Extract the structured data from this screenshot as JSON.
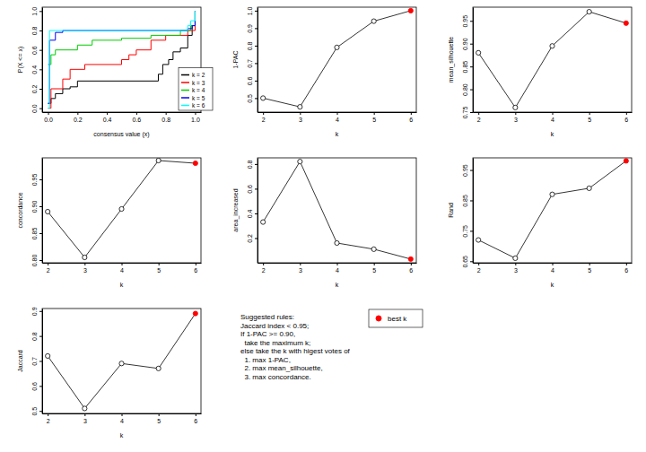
{
  "chart_data": [
    {
      "type": "line",
      "line_style": "step",
      "xlabel": "consensus value (x)",
      "ylabel": "P(X <= x)",
      "xlim": [
        -0.04,
        1.04
      ],
      "ylim": [
        -0.04,
        1.04
      ],
      "xticks": [
        {
          "value": 0,
          "label": "0.0"
        },
        0.2,
        0.4,
        0.6,
        0.8,
        {
          "value": 1,
          "label": "1.0"
        }
      ],
      "yticks": [
        {
          "value": 0,
          "label": "0.0"
        },
        0.2,
        0.4,
        0.6,
        0.8,
        {
          "value": 1,
          "label": "1.0"
        }
      ],
      "legend": "bottomright",
      "series": [
        {
          "name": "k = 2",
          "color": "black",
          "x": [
            0,
            0.02,
            0.05,
            0.1,
            0.15,
            0.2,
            0.75,
            0.78,
            0.82,
            0.85,
            0.9,
            0.95,
            0.98,
            1
          ],
          "values": [
            0.05,
            0.1,
            0.15,
            0.2,
            0.22,
            0.28,
            0.35,
            0.45,
            0.5,
            0.58,
            0.62,
            0.75,
            0.85,
            1
          ]
        },
        {
          "name": "k = 3",
          "color": "red",
          "x": [
            0,
            0.02,
            0.1,
            0.15,
            0.25,
            0.5,
            0.55,
            0.6,
            0.7,
            0.8,
            0.95,
            1
          ],
          "values": [
            0,
            0.2,
            0.3,
            0.4,
            0.45,
            0.5,
            0.55,
            0.6,
            0.7,
            0.75,
            0.8,
            1
          ]
        },
        {
          "name": "k = 4",
          "color": "#00cd00",
          "x": [
            0,
            0.02,
            0.05,
            0.2,
            0.3,
            0.5,
            0.7,
            0.9,
            0.97,
            1
          ],
          "values": [
            0.45,
            0.55,
            0.6,
            0.65,
            0.7,
            0.72,
            0.75,
            0.8,
            0.85,
            1
          ]
        },
        {
          "name": "k = 5",
          "color": "blue",
          "x": [
            0,
            0.01,
            0.05,
            0.1,
            0.95,
            0.98,
            1
          ],
          "values": [
            0.05,
            0.7,
            0.78,
            0.8,
            0.82,
            0.85,
            1
          ]
        },
        {
          "name": "k = 6",
          "color": "cyan",
          "x": [
            0,
            0.01,
            0.95,
            0.97,
            1
          ],
          "values": [
            0,
            0.8,
            0.85,
            0.9,
            1
          ]
        }
      ]
    },
    {
      "type": "line",
      "marker": "circle",
      "line_style": "solid",
      "xlabel": "k",
      "ylabel": "1-PAC",
      "xlim": [
        1.85,
        6.15
      ],
      "ylim": [
        0.42,
        1.02
      ],
      "xticks": [
        2,
        3,
        4,
        5,
        6
      ],
      "yticks": [
        0.5,
        0.6,
        0.7,
        0.8,
        0.9,
        {
          "value": 1,
          "label": "1.0"
        }
      ],
      "x": [
        2,
        3,
        4,
        5,
        6
      ],
      "values": [
        0.5,
        0.45,
        0.79,
        0.94,
        1.0
      ],
      "color": "black",
      "colors": [
        "black",
        "black",
        "black",
        "black",
        "red"
      ]
    },
    {
      "type": "line",
      "marker": "circle",
      "line_style": "solid",
      "xlabel": "k",
      "ylabel": "mean_silhouette",
      "xlim": [
        1.85,
        6.15
      ],
      "ylim": [
        0.75,
        0.98
      ],
      "xticks": [
        2,
        3,
        4,
        5,
        6
      ],
      "yticks": [
        0.75,
        {
          "value": 0.8,
          "label": "0.80"
        },
        0.85,
        {
          "value": 0.9,
          "label": "0.90"
        },
        0.95
      ],
      "x": [
        2,
        3,
        4,
        5,
        6
      ],
      "values": [
        0.88,
        0.76,
        0.895,
        0.97,
        0.945
      ],
      "color": "black",
      "colors": [
        "black",
        "black",
        "black",
        "black",
        "red"
      ]
    },
    {
      "type": "line",
      "marker": "circle",
      "line_style": "solid",
      "xlabel": "k",
      "ylabel": "concordance",
      "xlim": [
        1.85,
        6.15
      ],
      "ylim": [
        0.795,
        0.99
      ],
      "xticks": [
        2,
        3,
        4,
        5,
        6
      ],
      "yticks": [
        {
          "value": 0.8,
          "label": "0.80"
        },
        0.85,
        {
          "value": 0.9,
          "label": "0.90"
        },
        0.95
      ],
      "x": [
        2,
        3,
        4,
        5,
        6
      ],
      "values": [
        0.89,
        0.805,
        0.895,
        0.985,
        0.98
      ],
      "color": "black",
      "colors": [
        "black",
        "black",
        "black",
        "black",
        "red"
      ]
    },
    {
      "type": "line",
      "marker": "circle",
      "line_style": "solid",
      "xlabel": "k",
      "ylabel": "area_increased",
      "xlim": [
        1.85,
        6.15
      ],
      "ylim": [
        0,
        0.85
      ],
      "xticks": [
        2,
        3,
        4,
        5,
        6
      ],
      "yticks": [
        0.2,
        0.4,
        0.6,
        0.8
      ],
      "x": [
        2,
        3,
        4,
        5,
        6
      ],
      "values": [
        0.33,
        0.82,
        0.16,
        0.11,
        0.03
      ],
      "color": "black",
      "colors": [
        "black",
        "black",
        "black",
        "black",
        "red"
      ]
    },
    {
      "type": "line",
      "marker": "circle",
      "line_style": "solid",
      "xlabel": "k",
      "ylabel": "Rand",
      "xlim": [
        1.85,
        6.15
      ],
      "ylim": [
        0.645,
        0.99
      ],
      "xticks": [
        2,
        3,
        4,
        5,
        6
      ],
      "yticks": [
        0.65,
        0.75,
        0.85,
        0.95
      ],
      "x": [
        2,
        3,
        4,
        5,
        6
      ],
      "values": [
        0.72,
        0.66,
        0.87,
        0.89,
        0.98
      ],
      "color": "black",
      "colors": [
        "black",
        "black",
        "black",
        "black",
        "red"
      ]
    },
    {
      "type": "line",
      "marker": "circle",
      "line_style": "solid",
      "xlabel": "k",
      "ylabel": "Jaccard",
      "xlim": [
        1.85,
        6.15
      ],
      "ylim": [
        0.49,
        0.91
      ],
      "xticks": [
        2,
        3,
        4,
        5,
        6
      ],
      "yticks": [
        0.5,
        0.6,
        0.7,
        0.8,
        0.9
      ],
      "x": [
        2,
        3,
        4,
        5,
        6
      ],
      "values": [
        0.72,
        0.51,
        0.69,
        0.67,
        0.89
      ],
      "color": "black",
      "colors": [
        "black",
        "black",
        "black",
        "black",
        "red"
      ]
    }
  ],
  "rules_text": [
    "Suggested rules:",
    "Jaccard index < 0.95;",
    "If 1-PAC >= 0.90,",
    "  take the maximum k;",
    "else take the k with higest votes of",
    "  1. max 1-PAC,",
    "  2. max mean_silhouette,",
    "  3. max concordance."
  ],
  "best_k_legend": {
    "label": "best k",
    "color": "red"
  }
}
